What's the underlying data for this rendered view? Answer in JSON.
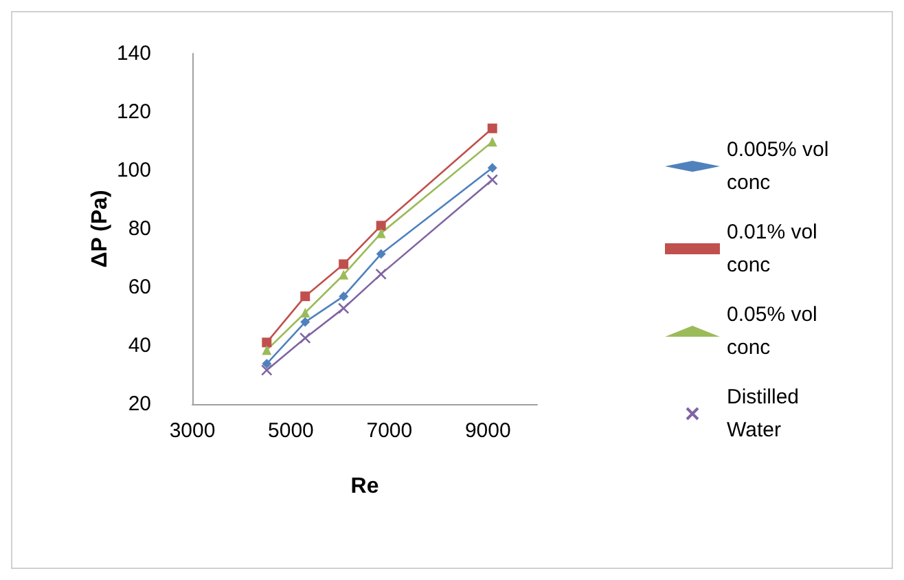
{
  "chart_data": {
    "type": "line",
    "xlabel": "Re",
    "ylabel": "ΔP (Pa)",
    "x": [
      4510,
      5290,
      6070,
      6830,
      9090
    ],
    "xlim": [
      3000,
      10000
    ],
    "xticks": [
      3000,
      5000,
      7000,
      9000
    ],
    "ylim": [
      20,
      140
    ],
    "yticks": [
      20,
      40,
      60,
      80,
      100,
      120,
      140
    ],
    "grid": false,
    "legend": "right",
    "line_style": "solid",
    "series": [
      {
        "name": "0.005% vol conc",
        "color": "#4f81bd",
        "marker": "diamond",
        "values": [
          33.8,
          48.1,
          56.9,
          71.4,
          100.9
        ]
      },
      {
        "name": "0.01% vol conc",
        "color": "#c0504d",
        "marker": "square",
        "values": [
          41.1,
          56.9,
          67.9,
          81.1,
          114.4
        ]
      },
      {
        "name": "0.05% vol conc",
        "color": "#9bbb59",
        "marker": "triangle",
        "values": [
          38.5,
          51.3,
          64.3,
          78.5,
          109.8
        ]
      },
      {
        "name": "Distilled Water",
        "color": "#8064a2",
        "marker": "cross",
        "values": [
          31.6,
          42.6,
          52.8,
          64.5,
          96.8
        ]
      }
    ]
  }
}
